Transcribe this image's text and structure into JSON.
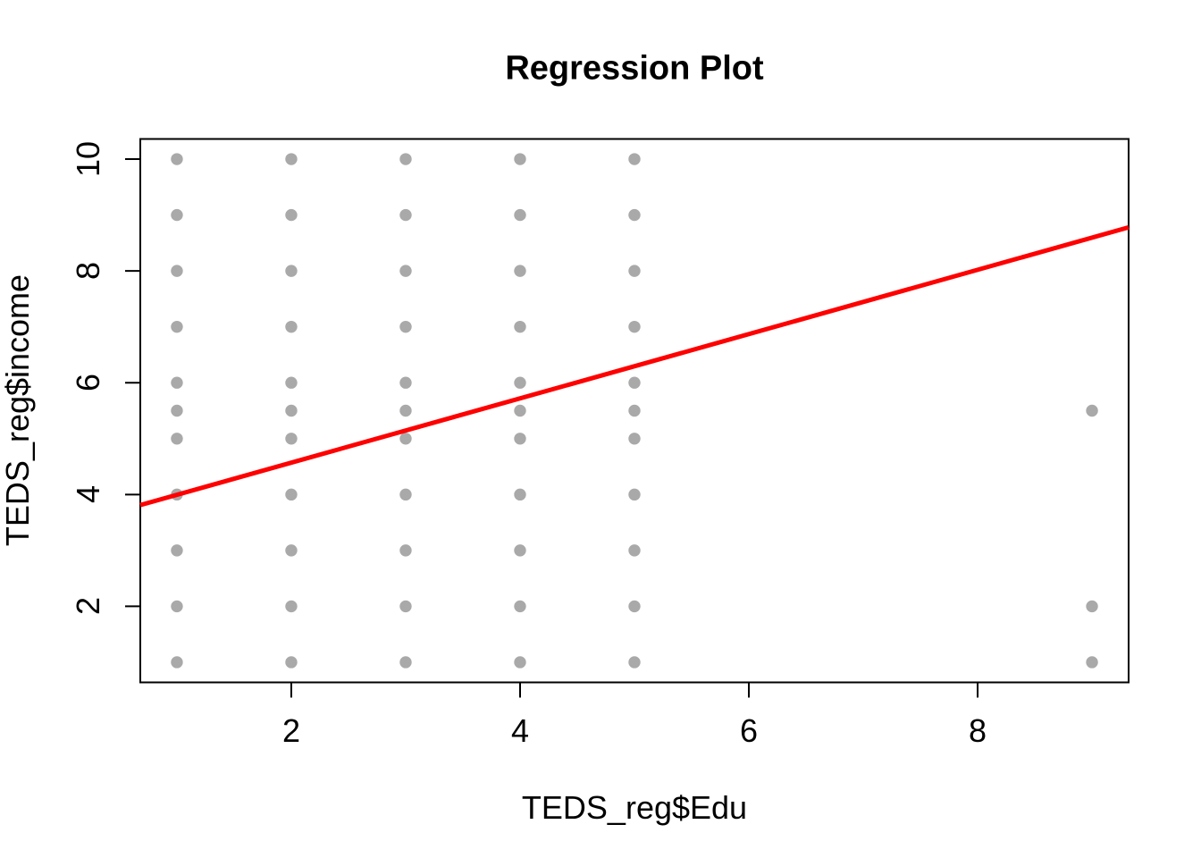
{
  "chart_data": {
    "type": "scatter",
    "title": "Regression Plot",
    "xlabel": "TEDS_reg$Edu",
    "ylabel": "TEDS_reg$income",
    "xlim": [
      0.68,
      9.32
    ],
    "ylim": [
      0.64,
      10.36
    ],
    "x_ticks": [
      "2",
      "4",
      "6",
      "8"
    ],
    "x_tick_values": [
      2,
      4,
      6,
      8
    ],
    "y_ticks": [
      "2",
      "4",
      "6",
      "8",
      "10"
    ],
    "y_tick_values": [
      2,
      4,
      6,
      8,
      10
    ],
    "grid": false,
    "legend": false,
    "colors": {
      "point": "#a9a9a9",
      "line": "#ff0000",
      "axis": "#000000",
      "background": "#ffffff"
    },
    "regression_line": {
      "intercept": 3.42,
      "slope": 0.575
    },
    "points": [
      {
        "x": 1,
        "y": 1
      },
      {
        "x": 1,
        "y": 2
      },
      {
        "x": 1,
        "y": 3
      },
      {
        "x": 1,
        "y": 4
      },
      {
        "x": 1,
        "y": 5
      },
      {
        "x": 1,
        "y": 5.5
      },
      {
        "x": 1,
        "y": 6
      },
      {
        "x": 1,
        "y": 7
      },
      {
        "x": 1,
        "y": 8
      },
      {
        "x": 1,
        "y": 9
      },
      {
        "x": 1,
        "y": 10
      },
      {
        "x": 2,
        "y": 1
      },
      {
        "x": 2,
        "y": 2
      },
      {
        "x": 2,
        "y": 3
      },
      {
        "x": 2,
        "y": 4
      },
      {
        "x": 2,
        "y": 5
      },
      {
        "x": 2,
        "y": 5.5
      },
      {
        "x": 2,
        "y": 6
      },
      {
        "x": 2,
        "y": 7
      },
      {
        "x": 2,
        "y": 8
      },
      {
        "x": 2,
        "y": 9
      },
      {
        "x": 2,
        "y": 10
      },
      {
        "x": 3,
        "y": 1
      },
      {
        "x": 3,
        "y": 2
      },
      {
        "x": 3,
        "y": 3
      },
      {
        "x": 3,
        "y": 4
      },
      {
        "x": 3,
        "y": 5
      },
      {
        "x": 3,
        "y": 5.5
      },
      {
        "x": 3,
        "y": 6
      },
      {
        "x": 3,
        "y": 7
      },
      {
        "x": 3,
        "y": 8
      },
      {
        "x": 3,
        "y": 9
      },
      {
        "x": 3,
        "y": 10
      },
      {
        "x": 4,
        "y": 1
      },
      {
        "x": 4,
        "y": 2
      },
      {
        "x": 4,
        "y": 3
      },
      {
        "x": 4,
        "y": 4
      },
      {
        "x": 4,
        "y": 5
      },
      {
        "x": 4,
        "y": 5.5
      },
      {
        "x": 4,
        "y": 6
      },
      {
        "x": 4,
        "y": 7
      },
      {
        "x": 4,
        "y": 8
      },
      {
        "x": 4,
        "y": 9
      },
      {
        "x": 4,
        "y": 10
      },
      {
        "x": 5,
        "y": 1
      },
      {
        "x": 5,
        "y": 2
      },
      {
        "x": 5,
        "y": 3
      },
      {
        "x": 5,
        "y": 4
      },
      {
        "x": 5,
        "y": 5
      },
      {
        "x": 5,
        "y": 5.5
      },
      {
        "x": 5,
        "y": 6
      },
      {
        "x": 5,
        "y": 7
      },
      {
        "x": 5,
        "y": 8
      },
      {
        "x": 5,
        "y": 9
      },
      {
        "x": 5,
        "y": 10
      },
      {
        "x": 9,
        "y": 1
      },
      {
        "x": 9,
        "y": 2
      },
      {
        "x": 9,
        "y": 5.5
      }
    ]
  }
}
